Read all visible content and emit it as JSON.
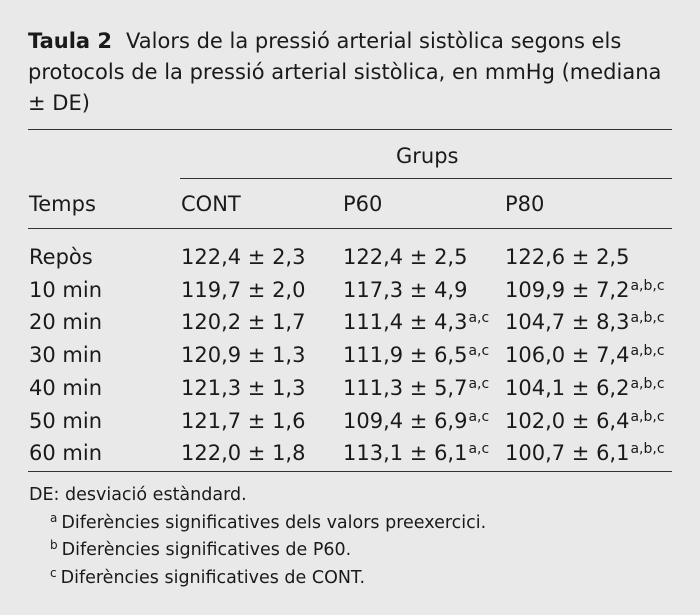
{
  "caption": {
    "label": "Taula 2",
    "text": "Valors de la pressió arterial sistòlica segons els protocols de la pressió arterial sistòlica, en mmHg (mediana ± DE)"
  },
  "table": {
    "group_header": "Grups",
    "row_header": "Temps",
    "columns": [
      "CONT",
      "P60",
      "P80"
    ],
    "rows": [
      {
        "time": "Repòs",
        "cont": "122,4 ± 2,3",
        "p60": "122,4 ± 2,5",
        "p60_sup": "",
        "p80": "122,6 ± 2,5",
        "p80_sup": ""
      },
      {
        "time": "10 min",
        "cont": "119,7 ± 2,0",
        "p60": "117,3 ± 4,9",
        "p60_sup": "",
        "p80": "109,9 ± 7,2",
        "p80_sup": "a,b,c"
      },
      {
        "time": "20 min",
        "cont": "120,2 ± 1,7",
        "p60": "111,4 ± 4,3",
        "p60_sup": "a,c",
        "p80": "104,7 ± 8,3",
        "p80_sup": "a,b,c"
      },
      {
        "time": "30 min",
        "cont": "120,9 ± 1,3",
        "p60": "111,9 ± 6,5",
        "p60_sup": "a,c",
        "p80": "106,0 ± 7,4",
        "p80_sup": "a,b,c"
      },
      {
        "time": "40 min",
        "cont": "121,3 ± 1,3",
        "p60": "111,3 ± 5,7",
        "p60_sup": "a,c",
        "p80": "104,1 ± 6,2",
        "p80_sup": "a,b,c"
      },
      {
        "time": "50 min",
        "cont": "121,7 ± 1,6",
        "p60": "109,4 ± 6,9",
        "p60_sup": "a,c",
        "p80": "102,0 ± 6,4",
        "p80_sup": "a,b,c"
      },
      {
        "time": "60 min",
        "cont": "122,0 ± 1,8",
        "p60": "113,1 ± 6,1",
        "p60_sup": "a,c",
        "p80": "100,7 ± 6,1",
        "p80_sup": "a,b,c"
      }
    ]
  },
  "footnotes": {
    "de": "DE: desviació estàndard.",
    "notes": [
      {
        "mark": "a",
        "text": "Diferències significatives dels valors preexercici."
      },
      {
        "mark": "b",
        "text": "Diferències significatives de P60."
      },
      {
        "mark": "c",
        "text": "Diferències significatives de CONT."
      }
    ]
  }
}
